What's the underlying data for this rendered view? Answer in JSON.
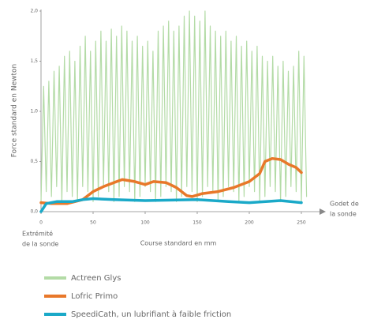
{
  "chart_data": {
    "type": "line",
    "y_label": "Force standard en Newton",
    "x_label": "Course standard en mm",
    "annotations": [
      [
        "Extrémité",
        "de la sonde"
      ],
      [
        "Godet de",
        "la sonde"
      ]
    ],
    "xlim": [
      0,
      250
    ],
    "xticks": [
      0,
      50,
      100,
      150,
      200,
      250
    ],
    "ylim": [
      0,
      2
    ],
    "yticks": [
      {
        "value": 0,
        "label": "0,0"
      },
      {
        "value": 0.5,
        "label": "0,5"
      },
      {
        "value": 1,
        "label": "1,0"
      },
      {
        "value": 1.5,
        "label": "1,5"
      },
      {
        "value": 2,
        "label": "2,0"
      }
    ],
    "series": [
      {
        "name": "Actreen Glys",
        "color": "#b3dba6",
        "x": [
          0,
          2.5,
          5,
          7.5,
          10,
          12.5,
          15,
          17.5,
          20,
          22.5,
          25,
          27.5,
          30,
          32.5,
          35,
          37.5,
          40,
          42.5,
          45,
          47.5,
          50,
          52.5,
          55,
          57.5,
          60,
          62.5,
          65,
          67.5,
          70,
          72.5,
          75,
          77.5,
          80,
          82.5,
          85,
          87.5,
          90,
          92.5,
          95,
          97.5,
          100,
          102.5,
          105,
          107.5,
          110,
          112.5,
          115,
          117.5,
          120,
          122.5,
          125,
          127.5,
          130,
          132.5,
          135,
          137.5,
          140,
          142.5,
          145,
          147.5,
          150,
          152.5,
          155,
          157.5,
          160,
          162.5,
          165,
          167.5,
          170,
          172.5,
          175,
          177.5,
          180,
          182.5,
          185,
          187.5,
          190,
          192.5,
          195,
          197.5,
          200,
          202.5,
          205,
          207.5,
          210,
          212.5,
          215,
          217.5,
          220,
          222.5,
          225,
          227.5,
          230,
          232.5,
          235,
          237.5,
          240,
          242.5,
          245,
          247.5,
          250,
          252.5,
          255
        ],
        "values": [
          0.1,
          1.25,
          0.2,
          1.3,
          0.15,
          1.4,
          0.25,
          1.45,
          0.1,
          1.55,
          0.2,
          1.6,
          0.15,
          1.5,
          0.1,
          1.65,
          0.25,
          1.75,
          0.2,
          1.6,
          0.1,
          1.7,
          0.15,
          1.8,
          0.25,
          1.7,
          0.2,
          1.82,
          0.1,
          1.75,
          0.15,
          1.85,
          0.25,
          1.8,
          0.2,
          1.7,
          0.1,
          1.75,
          0.15,
          1.65,
          0.25,
          1.7,
          0.2,
          1.6,
          0.1,
          1.8,
          0.15,
          1.85,
          0.25,
          1.9,
          0.2,
          1.8,
          0.1,
          1.85,
          0.15,
          1.95,
          0.25,
          2.0,
          0.2,
          1.95,
          0.1,
          1.9,
          0.15,
          2.0,
          0.25,
          1.85,
          0.2,
          1.8,
          0.1,
          1.75,
          0.15,
          1.8,
          0.25,
          1.7,
          0.2,
          1.75,
          0.1,
          1.65,
          0.15,
          1.7,
          0.25,
          1.6,
          0.2,
          1.65,
          0.1,
          1.55,
          0.15,
          1.5,
          0.25,
          1.55,
          0.2,
          1.45,
          0.1,
          1.5,
          0.15,
          1.4,
          0.25,
          1.45,
          0.2,
          1.6,
          0.1,
          1.55,
          0.15
        ]
      },
      {
        "name": "Lofric Primo",
        "color": "#e8782a",
        "x": [
          0,
          10,
          25,
          40,
          50,
          60,
          70,
          78,
          90,
          100,
          108,
          120,
          130,
          140,
          145,
          155,
          170,
          185,
          200,
          210,
          215,
          222,
          230,
          238,
          245,
          250
        ],
        "values": [
          0.09,
          0.08,
          0.08,
          0.12,
          0.2,
          0.25,
          0.29,
          0.32,
          0.3,
          0.27,
          0.3,
          0.29,
          0.24,
          0.16,
          0.15,
          0.18,
          0.2,
          0.24,
          0.3,
          0.38,
          0.5,
          0.53,
          0.52,
          0.47,
          0.44,
          0.39
        ]
      },
      {
        "name": "SpeediCath, un lubrifiant à faible friction",
        "color": "#1aa9c8",
        "x": [
          0,
          5,
          15,
          30,
          40,
          50,
          70,
          100,
          150,
          180,
          200,
          230,
          250
        ],
        "values": [
          0,
          0.08,
          0.1,
          0.1,
          0.12,
          0.13,
          0.12,
          0.11,
          0.12,
          0.1,
          0.09,
          0.11,
          0.09
        ]
      }
    ]
  }
}
